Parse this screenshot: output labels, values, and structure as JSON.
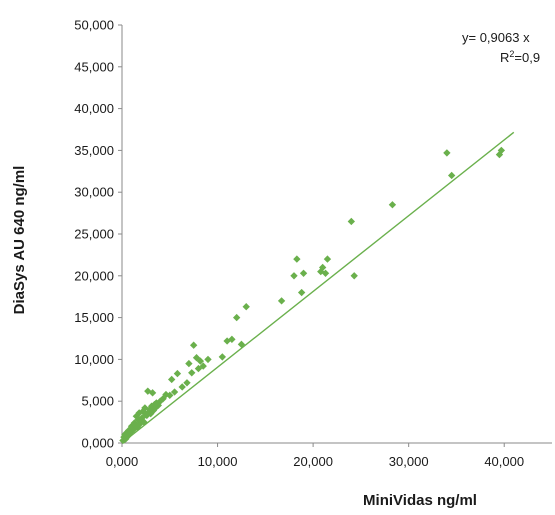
{
  "chart_data": {
    "type": "scatter",
    "title": "",
    "xlabel": "MiniVidas ng/ml",
    "ylabel": "DiaSys AU 640 ng/ml",
    "xlim": [
      0,
      45000
    ],
    "ylim": [
      0,
      50000
    ],
    "x_ticks": [
      0,
      10000,
      20000,
      30000,
      40000
    ],
    "x_tick_labels": [
      "0,000",
      "10,000",
      "20,000",
      "30,000",
      "40,000"
    ],
    "y_ticks": [
      0,
      5000,
      10000,
      15000,
      20000,
      25000,
      30000,
      35000,
      40000,
      45000,
      50000
    ],
    "y_tick_labels": [
      "0,000",
      "5,000",
      "10,000",
      "15,000",
      "20,000",
      "25,000",
      "30,000",
      "35,000",
      "40,000",
      "45,000",
      "50,000"
    ],
    "grid": false,
    "marker_color": "#6ab04c",
    "line_color": "#6ab04c",
    "trendline": {
      "slope": 0.9063,
      "intercept": 0,
      "x_range": [
        0,
        41000
      ]
    },
    "equation_text": "y= 0,9063 x",
    "r2_label": "R",
    "r2_superscript": "2",
    "r2_value_text": "=0,9",
    "series": [
      {
        "x": [
          100,
          200,
          250,
          300,
          400,
          450,
          500,
          600,
          700,
          800,
          900,
          1000,
          1100,
          1200,
          1300,
          1400,
          1500,
          1600,
          1700,
          1800,
          1900,
          2000,
          2100,
          2200,
          2300,
          2400,
          2500,
          2600,
          2700,
          2800,
          2900,
          3000,
          3100,
          3200,
          3300,
          3400,
          3500,
          3600,
          3800,
          4000,
          4300,
          4600,
          5000,
          5200,
          5500,
          5800,
          6300,
          6800,
          7000,
          7300,
          7500,
          7800,
          8000,
          8200,
          8500,
          9000,
          10500,
          11000,
          11500,
          12000,
          12500,
          13000,
          16700,
          18000,
          18300,
          18800,
          19000,
          20800,
          21000,
          21300,
          21500,
          24000,
          24300,
          28300,
          34000,
          34500,
          39500,
          39700
        ],
        "y": [
          300,
          700,
          400,
          1000,
          500,
          1200,
          900,
          800,
          1500,
          1100,
          1300,
          2000,
          1800,
          1600,
          2400,
          2100,
          3200,
          1900,
          2800,
          3600,
          2300,
          2600,
          3000,
          3800,
          2500,
          4200,
          3400,
          3300,
          6200,
          3700,
          4000,
          3500,
          4400,
          6000,
          3900,
          4600,
          4200,
          4800,
          4500,
          5000,
          5300,
          5800,
          5700,
          7600,
          6100,
          8300,
          6700,
          7200,
          9500,
          8400,
          11700,
          10200,
          8900,
          9800,
          9200,
          10000,
          10300,
          12200,
          12400,
          15000,
          11800,
          16300,
          17000,
          20000,
          22000,
          18000,
          20300,
          20500,
          21000,
          20300,
          22000,
          26500,
          20000,
          28500,
          34700,
          32000,
          34500,
          35000
        ]
      }
    ]
  }
}
